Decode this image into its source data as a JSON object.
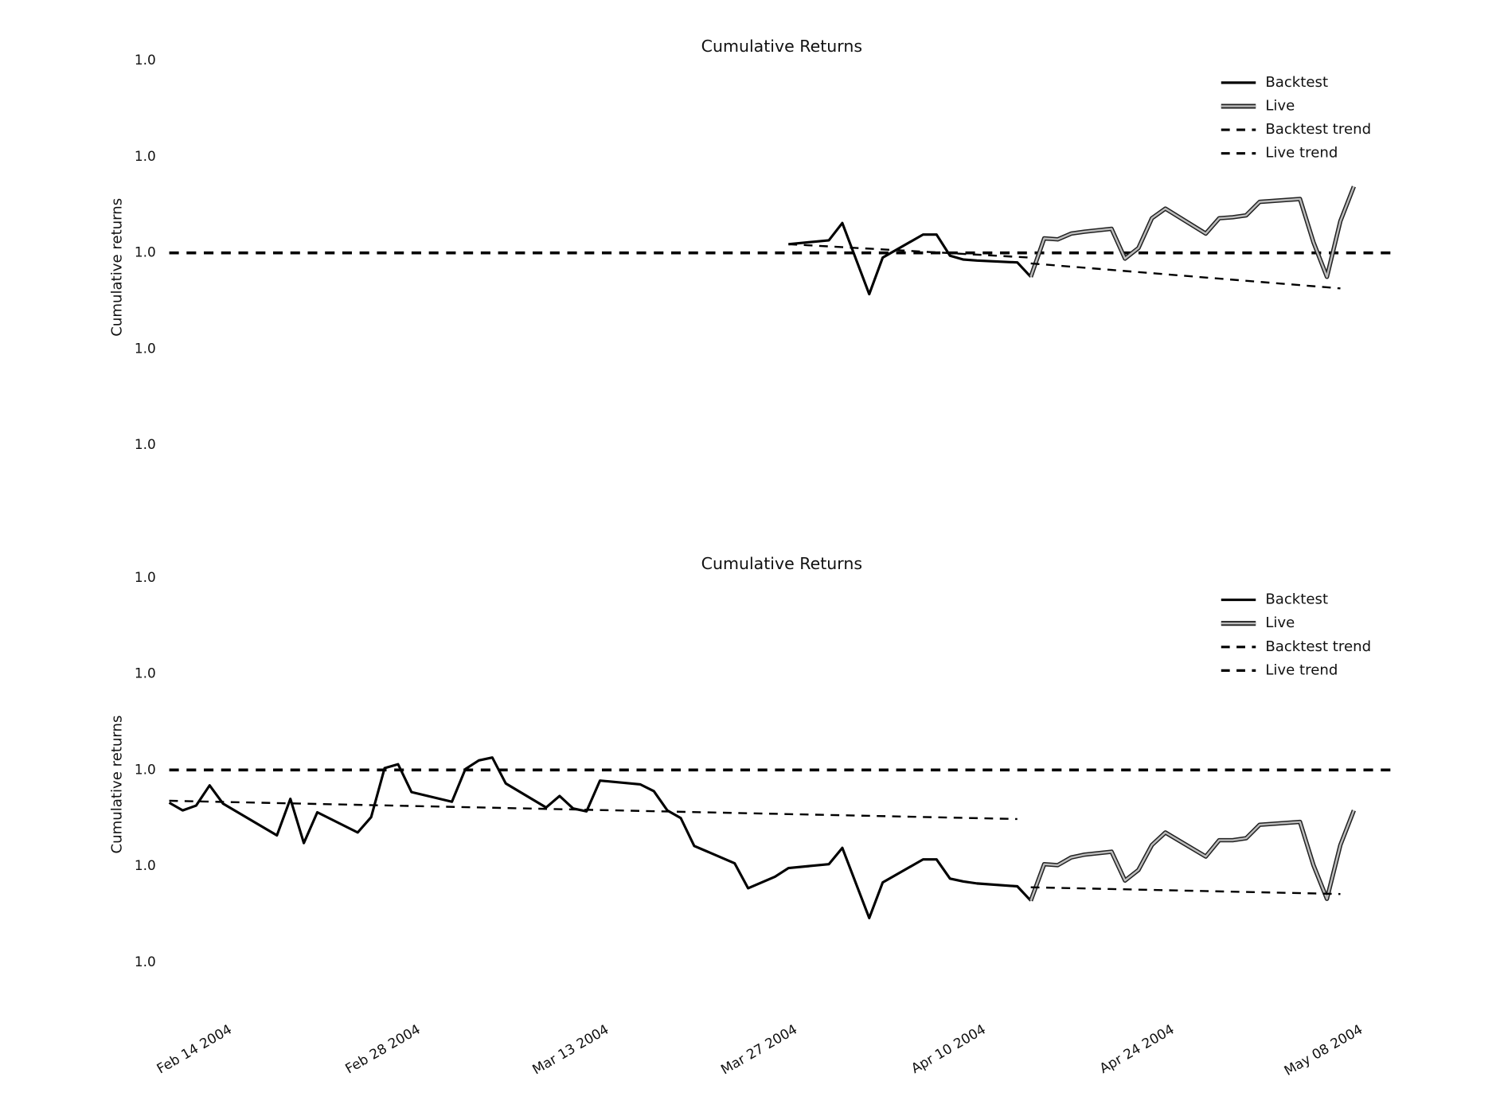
{
  "chart_data": [
    {
      "type": "line",
      "title": "Cumulative Returns",
      "ylabel": "Cumulative returns",
      "xlim": [
        "2004-02-10",
        "2004-05-11"
      ],
      "ylim": [
        0.99976,
        1.00021
      ],
      "yticks": [
        {
          "value": 0.9998,
          "label": "1.0"
        },
        {
          "value": 0.9999,
          "label": "1.0"
        },
        {
          "value": 1.0,
          "label": "1.0"
        },
        {
          "value": 1.0001,
          "label": "1.0"
        },
        {
          "value": 1.0002,
          "label": "1.0"
        }
      ],
      "hline": 1.0,
      "legend": "upper right",
      "series": [
        {
          "name": "Backtest",
          "color": "#000000",
          "style": "solid",
          "x": [
            "2004-03-27",
            "2004-03-30",
            "2004-03-31",
            "2004-04-02",
            "2004-04-03",
            "2004-04-06",
            "2004-04-07",
            "2004-04-08",
            "2004-04-09",
            "2004-04-10",
            "2004-04-13",
            "2004-04-14"
          ],
          "values": [
            1.000009,
            1.000013,
            1.000031,
            0.999957,
            0.999995,
            1.000019,
            1.000019,
            0.999997,
            0.999993,
            0.999992,
            0.99999,
            0.999975
          ]
        },
        {
          "name": "Live",
          "color": "#bdbdbd",
          "style": "double",
          "x": [
            "2004-04-14",
            "2004-04-15",
            "2004-04-16",
            "2004-04-17",
            "2004-04-18",
            "2004-04-20",
            "2004-04-21",
            "2004-04-22",
            "2004-04-23",
            "2004-04-24",
            "2004-04-27",
            "2004-04-28",
            "2004-04-29",
            "2004-04-30",
            "2004-05-01",
            "2004-05-04",
            "2004-05-05",
            "2004-05-06",
            "2004-05-07",
            "2004-05-08"
          ],
          "values": [
            0.999975,
            1.000015,
            1.000014,
            1.00002,
            1.000022,
            1.000025,
            0.999994,
            1.000005,
            1.000036,
            1.000046,
            1.00002,
            1.000036,
            1.000037,
            1.000039,
            1.000053,
            1.000056,
            1.000011,
            0.999975,
            1.000033,
            1.000069
          ]
        },
        {
          "name": "Backtest trend",
          "color": "#000000",
          "style": "dashed",
          "x": [
            "2004-03-27",
            "2004-04-14"
          ],
          "values": [
            1.000009,
            0.999995
          ]
        },
        {
          "name": "Live trend",
          "color": "#000000",
          "style": "dashed",
          "x": [
            "2004-04-14",
            "2004-05-07"
          ],
          "values": [
            0.999989,
            0.999963
          ]
        }
      ]
    },
    {
      "type": "line",
      "title": "Cumulative Returns",
      "ylabel": "Cumulative returns",
      "xlim": [
        "2004-02-10",
        "2004-05-11"
      ],
      "ylim": [
        0.99976,
        1.00021
      ],
      "yticks": [
        {
          "value": 0.9998,
          "label": "1.0"
        },
        {
          "value": 0.9999,
          "label": "1.0"
        },
        {
          "value": 1.0,
          "label": "1.0"
        },
        {
          "value": 1.0001,
          "label": "1.0"
        },
        {
          "value": 1.0002,
          "label": "1.0"
        }
      ],
      "xticks": [
        {
          "value": "2004-02-14",
          "label": "Feb 14 2004"
        },
        {
          "value": "2004-02-28",
          "label": "Feb 28 2004"
        },
        {
          "value": "2004-03-13",
          "label": "Mar 13 2004"
        },
        {
          "value": "2004-03-27",
          "label": "Mar 27 2004"
        },
        {
          "value": "2004-04-10",
          "label": "Apr 10 2004"
        },
        {
          "value": "2004-04-24",
          "label": "Apr 24 2004"
        },
        {
          "value": "2004-05-08",
          "label": "May 08 2004"
        }
      ],
      "hline": 1.0,
      "legend": "upper right",
      "series": [
        {
          "name": "Backtest",
          "color": "#000000",
          "style": "solid",
          "x": [
            "2004-02-10",
            "2004-02-11",
            "2004-02-12",
            "2004-02-13",
            "2004-02-14",
            "2004-02-18",
            "2004-02-19",
            "2004-02-20",
            "2004-02-21",
            "2004-02-24",
            "2004-02-25",
            "2004-02-26",
            "2004-02-27",
            "2004-02-28",
            "2004-03-02",
            "2004-03-03",
            "2004-03-04",
            "2004-03-05",
            "2004-03-06",
            "2004-03-09",
            "2004-03-10",
            "2004-03-11",
            "2004-03-12",
            "2004-03-13",
            "2004-03-16",
            "2004-03-17",
            "2004-03-18",
            "2004-03-19",
            "2004-03-20",
            "2004-03-23",
            "2004-03-24",
            "2004-03-25",
            "2004-03-26",
            "2004-03-27",
            "2004-03-30",
            "2004-03-31",
            "2004-04-02",
            "2004-04-03",
            "2004-04-06",
            "2004-04-07",
            "2004-04-08",
            "2004-04-09",
            "2004-04-10",
            "2004-04-13",
            "2004-04-14"
          ],
          "values": [
            0.999966,
            0.999958,
            0.999963,
            0.999984,
            0.999965,
            0.999932,
            0.99997,
            0.999924,
            0.999956,
            0.999935,
            0.999951,
            1.000002,
            1.000006,
            0.999977,
            0.999967,
            1.000001,
            1.00001,
            1.000013,
            0.999986,
            0.999961,
            0.999973,
            0.99996,
            0.999957,
            0.999989,
            0.999985,
            0.999978,
            0.999958,
            0.99995,
            0.999921,
            0.999903,
            0.999877,
            0.999883,
            0.999889,
            0.999898,
            0.999902,
            0.999919,
            0.999846,
            0.999883,
            0.999907,
            0.999907,
            0.999887,
            0.999884,
            0.999882,
            0.999879,
            0.999864
          ]
        },
        {
          "name": "Live",
          "color": "#bdbdbd",
          "style": "double",
          "x": [
            "2004-04-14",
            "2004-04-15",
            "2004-04-16",
            "2004-04-17",
            "2004-04-18",
            "2004-04-20",
            "2004-04-21",
            "2004-04-22",
            "2004-04-23",
            "2004-04-24",
            "2004-04-27",
            "2004-04-28",
            "2004-04-29",
            "2004-04-30",
            "2004-05-01",
            "2004-05-04",
            "2004-05-05",
            "2004-05-06",
            "2004-05-07",
            "2004-05-08"
          ],
          "values": [
            0.999864,
            0.999902,
            0.999901,
            0.999909,
            0.999912,
            0.999915,
            0.999885,
            0.999896,
            0.999922,
            0.999935,
            0.99991,
            0.999927,
            0.999927,
            0.999929,
            0.999943,
            0.999946,
            0.999901,
            0.999866,
            0.999922,
            0.999958
          ]
        },
        {
          "name": "Backtest trend",
          "color": "#000000",
          "style": "dashed",
          "x": [
            "2004-02-10",
            "2004-04-13"
          ],
          "values": [
            0.999968,
            0.999949
          ]
        },
        {
          "name": "Live trend",
          "color": "#000000",
          "style": "dashed",
          "x": [
            "2004-04-14",
            "2004-05-07"
          ],
          "values": [
            0.999878,
            0.999871
          ]
        }
      ]
    }
  ]
}
